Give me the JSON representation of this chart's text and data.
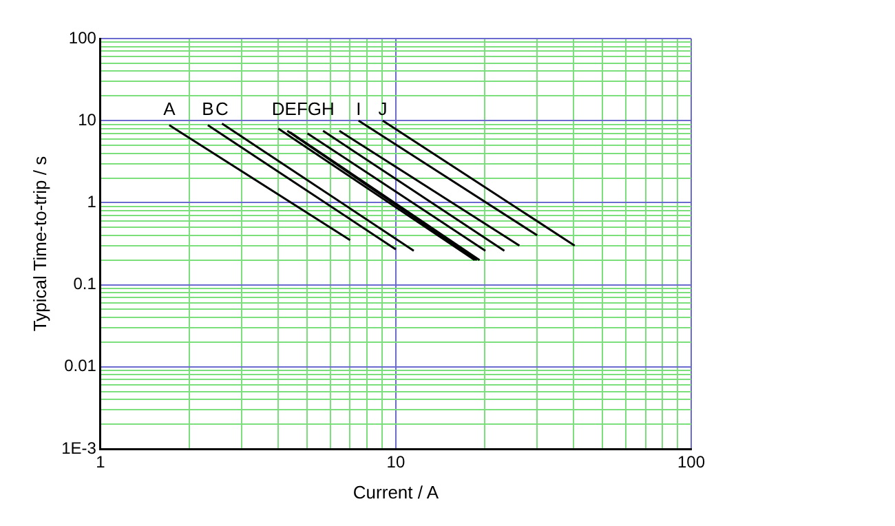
{
  "chart_data": {
    "type": "line",
    "xlabel": "Current / A",
    "ylabel": "Typical Time-to-trip / s",
    "log": "xy",
    "grid": true,
    "marker": "none",
    "line_style": "solid",
    "xlim": [
      1,
      100
    ],
    "xticks": [
      1,
      {
        "value": 2,
        "label": null
      },
      {
        "value": 3,
        "label": null
      },
      {
        "value": 4,
        "label": null
      },
      {
        "value": 5,
        "label": null
      },
      {
        "value": 6,
        "label": null
      },
      {
        "value": 7,
        "label": null
      },
      {
        "value": 8,
        "label": null
      },
      {
        "value": 9,
        "label": null
      },
      10,
      {
        "value": 20,
        "label": null
      },
      {
        "value": 30,
        "label": null
      },
      {
        "value": 40,
        "label": null
      },
      {
        "value": 50,
        "label": null
      },
      {
        "value": 60,
        "label": null
      },
      {
        "value": 70,
        "label": null
      },
      {
        "value": 80,
        "label": null
      },
      {
        "value": 90,
        "label": null
      },
      100
    ],
    "ylim": [
      0.001,
      100
    ],
    "yticks": [
      {
        "value": 0.001,
        "label": "1E-3"
      },
      {
        "value": 0.002,
        "label": null
      },
      {
        "value": 0.003,
        "label": null
      },
      {
        "value": 0.004,
        "label": null
      },
      {
        "value": 0.005,
        "label": null
      },
      {
        "value": 0.006,
        "label": null
      },
      {
        "value": 0.007,
        "label": null
      },
      {
        "value": 0.008,
        "label": null
      },
      {
        "value": 0.009,
        "label": null
      },
      0.01,
      {
        "value": 0.02,
        "label": null
      },
      {
        "value": 0.03,
        "label": null
      },
      {
        "value": 0.04,
        "label": null
      },
      {
        "value": 0.05,
        "label": null
      },
      {
        "value": 0.06,
        "label": null
      },
      {
        "value": 0.07,
        "label": null
      },
      {
        "value": 0.08,
        "label": null
      },
      {
        "value": 0.09,
        "label": null
      },
      0.1,
      {
        "value": 0.2,
        "label": null
      },
      {
        "value": 0.3,
        "label": null
      },
      {
        "value": 0.4,
        "label": null
      },
      {
        "value": 0.5,
        "label": null
      },
      {
        "value": 0.6,
        "label": null
      },
      {
        "value": 0.7,
        "label": null
      },
      {
        "value": 0.8,
        "label": null
      },
      {
        "value": 0.9,
        "label": null
      },
      1,
      {
        "value": 2,
        "label": null
      },
      {
        "value": 3,
        "label": null
      },
      {
        "value": 4,
        "label": null
      },
      {
        "value": 5,
        "label": null
      },
      {
        "value": 6,
        "label": null
      },
      {
        "value": 7,
        "label": null
      },
      {
        "value": 8,
        "label": null
      },
      {
        "value": 9,
        "label": null
      },
      10,
      {
        "value": 20,
        "label": null
      },
      {
        "value": 30,
        "label": null
      },
      {
        "value": 40,
        "label": null
      },
      {
        "value": 50,
        "label": null
      },
      {
        "value": 60,
        "label": null
      },
      {
        "value": 70,
        "label": null
      },
      {
        "value": 80,
        "label": null
      },
      {
        "value": 90,
        "label": null
      },
      100
    ],
    "series": [
      {
        "name": "A",
        "color": "#000000",
        "x": [
          1.71,
          7.0
        ],
        "values": [
          8.8,
          0.35
        ]
      },
      {
        "name": "B",
        "color": "#000000",
        "x": [
          2.31,
          10
        ],
        "values": [
          8.8,
          0.27
        ]
      },
      {
        "name": "C",
        "color": "#000000",
        "x": [
          2.58,
          11.5
        ],
        "values": [
          9.2,
          0.26
        ]
      },
      {
        "name": "D",
        "color": "#000000",
        "x": [
          4.0,
          18.5
        ],
        "values": [
          8.0,
          0.2
        ]
      },
      {
        "name": "E",
        "color": "#000000",
        "x": [
          4.29,
          18.8
        ],
        "values": [
          7.5,
          0.2
        ]
      },
      {
        "name": "F",
        "color": "#000000",
        "x": [
          4.39,
          19.2
        ],
        "values": [
          7.2,
          0.2
        ]
      },
      {
        "name": "G",
        "color": "#000000",
        "x": [
          5.02,
          20.1
        ],
        "values": [
          7.0,
          0.26
        ]
      },
      {
        "name": "H",
        "color": "#000000",
        "x": [
          5.67,
          23.3
        ],
        "values": [
          7.5,
          0.26
        ]
      },
      {
        "color": "#000000",
        "x": [
          6.44,
          26.2
        ],
        "values": [
          7.5,
          0.3
        ]
      },
      {
        "name": "I",
        "color": "#000000",
        "x": [
          7.48,
          30.1
        ],
        "values": [
          10,
          0.4
        ]
      },
      {
        "name": "J",
        "color": "#000000",
        "x": [
          9.03,
          40.3
        ],
        "values": [
          10,
          0.3
        ]
      }
    ]
  }
}
